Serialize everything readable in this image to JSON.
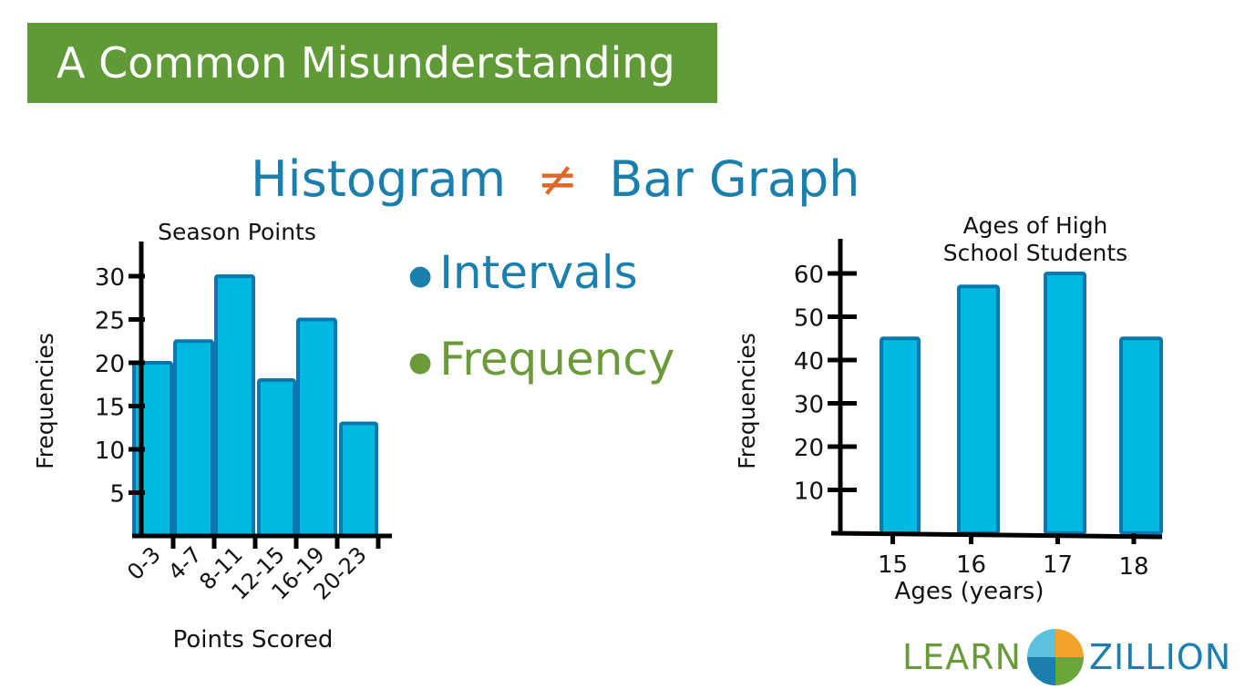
{
  "banner": {
    "title": "A Common Misunderstanding"
  },
  "headline": {
    "left": "Histogram",
    "symbol": "≠",
    "right": "Bar Graph"
  },
  "bullets": [
    "Intervals",
    "Frequency"
  ],
  "logo": {
    "left": "LEARN",
    "right": "ZILLION"
  },
  "colors": {
    "banner": "#5f9a37",
    "blue_text": "#1b7fae",
    "green_text": "#6c9a3a",
    "neq": "#e0672a",
    "bar_fill": "#00b8e0",
    "bar_stroke": "#0a78b0"
  },
  "chart_data": [
    {
      "type": "bar",
      "subtype": "histogram",
      "title": "Season Points",
      "xlabel": "Points Scored",
      "ylabel": "Frequencies",
      "categories": [
        "0-3",
        "4-7",
        "8-11",
        "12-15",
        "16-19",
        "20-23"
      ],
      "values": [
        20,
        22.5,
        30,
        18,
        25,
        13
      ],
      "yticks": [
        5,
        10,
        15,
        20,
        25,
        30
      ],
      "ylim": [
        0,
        34
      ],
      "grid": false
    },
    {
      "type": "bar",
      "title": "Ages of High School Students",
      "title_lines": [
        "Ages of High",
        "School Students"
      ],
      "xlabel": "Ages (years)",
      "ylabel": "Frequencies",
      "categories": [
        "15",
        "16",
        "17",
        "18"
      ],
      "values": [
        45,
        57,
        60,
        45
      ],
      "yticks": [
        10,
        20,
        30,
        40,
        50,
        60
      ],
      "ylim": [
        0,
        66
      ],
      "grid": false
    }
  ]
}
